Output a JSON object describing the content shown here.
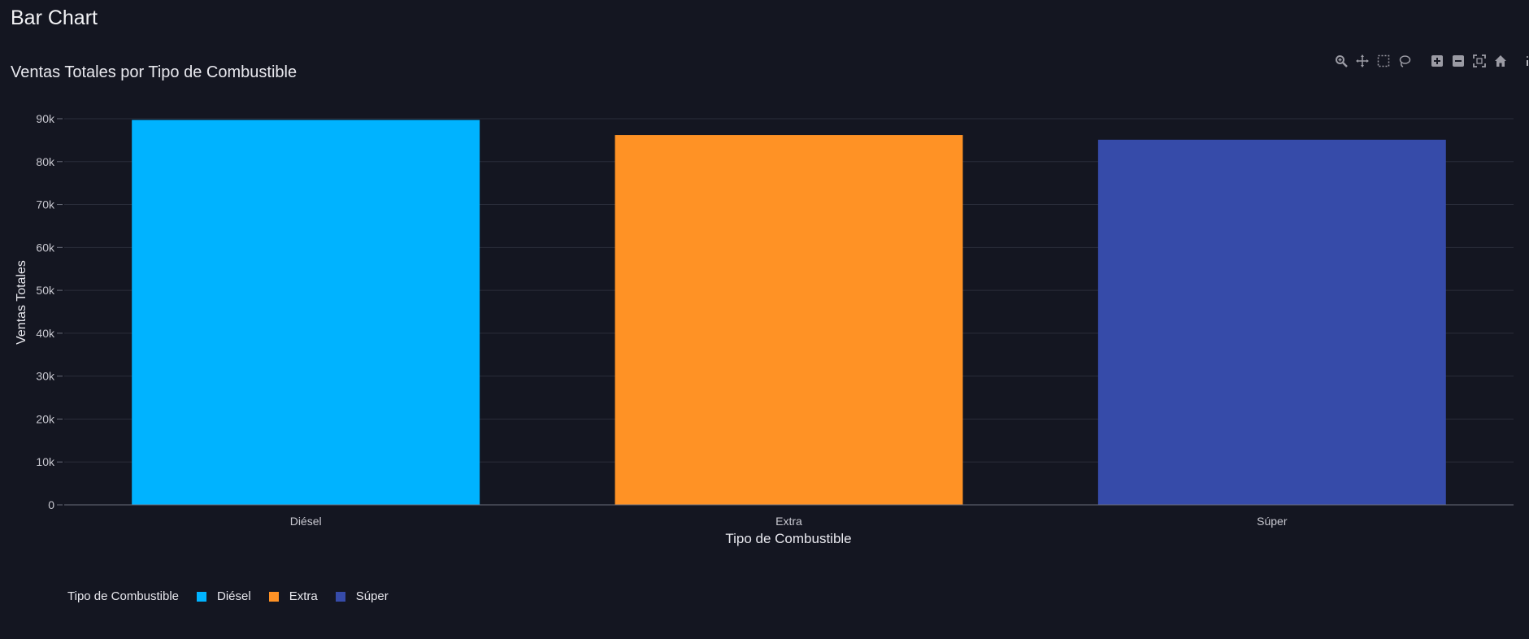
{
  "page": {
    "title": "Bar Chart"
  },
  "toolbar": {
    "icons": [
      "zoom-icon",
      "pan-icon",
      "box-select-icon",
      "lasso-select-icon",
      "zoom-in-icon",
      "zoom-out-icon",
      "autoscale-icon",
      "reset-axes-icon",
      "plotly-logo-icon"
    ]
  },
  "colors": {
    "background": "#141621",
    "grid": "#2a2d3a",
    "text": "#e8e8ee"
  },
  "chart_data": {
    "type": "bar",
    "title": "Ventas Totales por Tipo de Combustible",
    "xlabel": "Tipo de Combustible",
    "ylabel": "Ventas Totales",
    "categories": [
      "Diésel",
      "Extra",
      "Súper"
    ],
    "values": [
      89700,
      86200,
      85100
    ],
    "colors": [
      "#00b3ff",
      "#ff9225",
      "#364ba9"
    ],
    "ylim": [
      0,
      90000
    ],
    "yticks": [
      0,
      10000,
      20000,
      30000,
      40000,
      50000,
      60000,
      70000,
      80000,
      90000
    ],
    "ytick_labels": [
      "0",
      "10k",
      "20k",
      "30k",
      "40k",
      "50k",
      "60k",
      "70k",
      "80k",
      "90k"
    ],
    "grid": true,
    "legend": {
      "title": "Tipo de Combustible",
      "placement": "bottom-left",
      "entries": [
        "Diésel",
        "Extra",
        "Súper"
      ]
    }
  }
}
